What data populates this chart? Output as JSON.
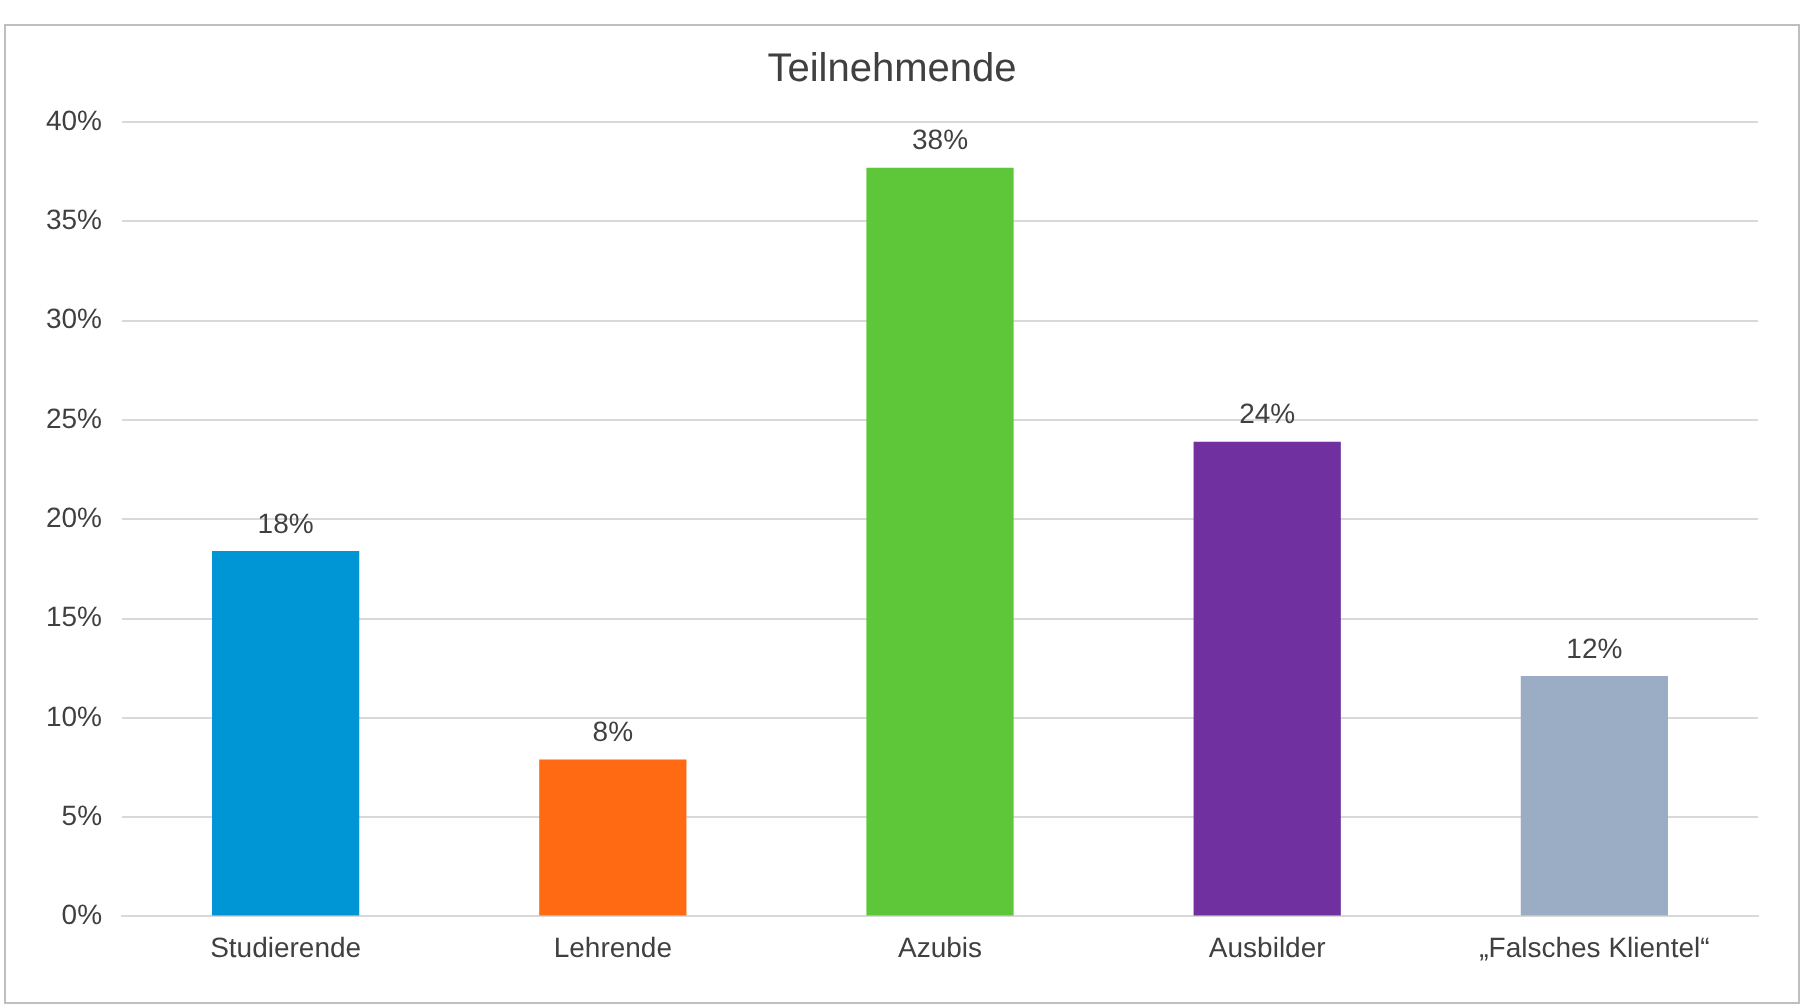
{
  "chart_data": {
    "type": "bar",
    "title": "Teilnehmende",
    "categories": [
      "Studierende",
      "Lehrende",
      "Azubis",
      "Ausbilder",
      "„Falsches Klientel“"
    ],
    "values": [
      18.4,
      7.9,
      37.7,
      23.9,
      12.1
    ],
    "value_labels": [
      "18%",
      "8%",
      "38%",
      "24%",
      "12%"
    ],
    "colors": [
      "#0096d6",
      "#ff6a13",
      "#5ec639",
      "#7030a0",
      "#9badc4"
    ],
    "ylim": [
      0,
      40
    ],
    "yticks": [
      {
        "value": 0,
        "label": "0%"
      },
      {
        "value": 5,
        "label": "5%"
      },
      {
        "value": 10,
        "label": "10%"
      },
      {
        "value": 15,
        "label": "15%"
      },
      {
        "value": 20,
        "label": "20%"
      },
      {
        "value": 25,
        "label": "25%"
      },
      {
        "value": 30,
        "label": "30%"
      },
      {
        "value": 35,
        "label": "35%"
      },
      {
        "value": 40,
        "label": "40%"
      }
    ],
    "grid": "y",
    "legend": false
  }
}
